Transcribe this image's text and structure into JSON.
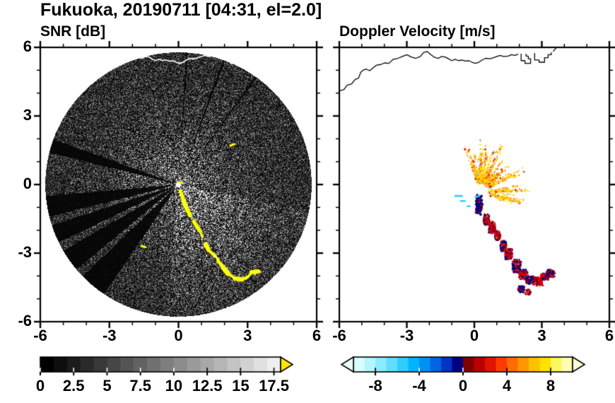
{
  "title": "Fukuoka, 20190711 [04:31, el=2.0]",
  "observation": {
    "site": "Fukuoka",
    "date": "20190711",
    "time": "04:31",
    "elevation": "2.0"
  },
  "panels": {
    "left": {
      "title": "SNR [dB]"
    },
    "right": {
      "title": "Doppler Velocity [m/s]"
    }
  },
  "axes": {
    "range": [
      -6,
      6
    ],
    "major_ticks": [
      -6,
      -3,
      0,
      3,
      6
    ],
    "major_tick_labels": [
      "-6",
      "-3",
      "0",
      "3",
      "6"
    ],
    "minor_tick_step": 1
  },
  "colorbars": {
    "snr": {
      "range": [
        0,
        18
      ],
      "tick_values": [
        0,
        2.5,
        5,
        7.5,
        10,
        12.5,
        15,
        17.5
      ],
      "tick_labels": [
        "0",
        "2.5",
        "5",
        "7.5",
        "10",
        "12.5",
        "15",
        "17.5"
      ],
      "colors": [
        "#000000",
        "#0e0e0e",
        "#1c1c1c",
        "#2a2a2a",
        "#383838",
        "#464646",
        "#545454",
        "#626262",
        "#707070",
        "#7e7e7e",
        "#8c8c8c",
        "#9a9a9a",
        "#a8a8a8",
        "#b6b6b6",
        "#c4c4c4",
        "#d2d2d2",
        "#e0e0e0",
        "#eeeeee"
      ],
      "over_arrow_color": "#ffe800"
    },
    "velocity": {
      "range": [
        -10,
        10
      ],
      "tick_values": [
        -8,
        -4,
        0,
        4,
        8
      ],
      "tick_labels": [
        "-8",
        "-4",
        "0",
        "4",
        "8"
      ],
      "colors": [
        "#d8ffff",
        "#b4f6ff",
        "#8cecff",
        "#60deff",
        "#30ccff",
        "#00b4ff",
        "#0090f4",
        "#0064e4",
        "#0034c4",
        "#000080",
        "#800000",
        "#bc0000",
        "#e01400",
        "#ff3c00",
        "#ff6c00",
        "#ff9800",
        "#ffc000",
        "#ffe200",
        "#fff660",
        "#ffffb4"
      ],
      "under_arrow_color": "#eeffff",
      "over_arrow_color": "#ffffd8"
    }
  },
  "colors": {
    "background": "#ffffff",
    "frame": "#000000",
    "coast_left": "#ffffff",
    "coast_right": "#000000",
    "echo_yellow": "#ffff00",
    "echo_pale": "#fff9a0",
    "velocity_navy": "#000080",
    "velocity_red": "#d40000",
    "velocity_orange": "#ff9500",
    "velocity_gold": "#ffcc00",
    "velocity_amber": "#ffe800",
    "velocity_cyan": "#33ccff"
  },
  "coastline": {
    "main": [
      [
        -6,
        4.1
      ],
      [
        -5.8,
        4.15
      ],
      [
        -5.65,
        4.35
      ],
      [
        -5.45,
        4.4
      ],
      [
        -5.3,
        4.6
      ],
      [
        -5.15,
        4.65
      ],
      [
        -5.05,
        4.9
      ],
      [
        -4.95,
        5.0
      ],
      [
        -4.8,
        5.05
      ],
      [
        -4.65,
        4.98
      ],
      [
        -4.5,
        5.1
      ],
      [
        -4.35,
        5.22
      ],
      [
        -4.15,
        5.25
      ],
      [
        -4.0,
        5.32
      ],
      [
        -3.8,
        5.3
      ],
      [
        -3.6,
        5.48
      ],
      [
        -3.4,
        5.52
      ],
      [
        -3.2,
        5.6
      ],
      [
        -3.0,
        5.68
      ],
      [
        -2.8,
        5.58
      ],
      [
        -2.6,
        5.52
      ],
      [
        -2.4,
        5.6
      ],
      [
        -2.25,
        5.78
      ],
      [
        -2.1,
        5.82
      ],
      [
        -1.95,
        5.7
      ],
      [
        -1.8,
        5.58
      ],
      [
        -1.6,
        5.52
      ],
      [
        -1.45,
        5.6
      ],
      [
        -1.3,
        5.58
      ],
      [
        -1.15,
        5.5
      ],
      [
        -1.0,
        5.42
      ],
      [
        -0.85,
        5.48
      ],
      [
        -0.7,
        5.42
      ],
      [
        -0.55,
        5.45
      ],
      [
        -0.4,
        5.4
      ],
      [
        -0.25,
        5.42
      ],
      [
        -0.1,
        5.35
      ],
      [
        0.05,
        5.3
      ],
      [
        0.2,
        5.35
      ],
      [
        0.35,
        5.45
      ],
      [
        0.5,
        5.52
      ],
      [
        0.7,
        5.5
      ],
      [
        0.85,
        5.55
      ],
      [
        1.0,
        5.6
      ],
      [
        1.15,
        5.65
      ],
      [
        1.3,
        5.6
      ],
      [
        1.5,
        5.62
      ],
      [
        1.65,
        5.68
      ],
      [
        1.8,
        5.65
      ],
      [
        1.95,
        5.7
      ]
    ],
    "structures": [
      [
        [
          2.08,
          5.72
        ],
        [
          2.08,
          5.42
        ],
        [
          2.25,
          5.42
        ],
        [
          2.25,
          5.3
        ],
        [
          2.5,
          5.3
        ],
        [
          2.5,
          5.5
        ],
        [
          2.4,
          5.5
        ],
        [
          2.4,
          5.62
        ],
        [
          2.3,
          5.62
        ],
        [
          2.3,
          5.72
        ]
      ],
      [
        [
          2.68,
          5.75
        ],
        [
          2.68,
          5.45
        ],
        [
          2.88,
          5.45
        ],
        [
          2.88,
          5.35
        ],
        [
          3.12,
          5.35
        ],
        [
          3.12,
          5.55
        ],
        [
          3.28,
          5.55
        ],
        [
          3.28,
          5.68
        ],
        [
          3.42,
          5.68
        ],
        [
          3.42,
          5.78
        ]
      ]
    ],
    "extra": [
      [
        3.5,
        5.82
      ],
      [
        3.64,
        5.98
      ]
    ]
  },
  "chart_data": [
    {
      "type": "heatmap",
      "title": "SNR [dB]",
      "xlabel": "",
      "ylabel": "",
      "xlim": [
        -6,
        6
      ],
      "ylim": [
        -6,
        6
      ],
      "xticks": [
        -6,
        -3,
        0,
        3,
        6
      ],
      "yticks": [
        -6,
        -3,
        0,
        3,
        6
      ],
      "colorbar": {
        "range": [
          0,
          18
        ],
        "tick_values": [
          0,
          2.5,
          5,
          7.5,
          10,
          12.5,
          15,
          17.5
        ],
        "colormap": "grayscale black to white",
        "over_color": "yellow"
      },
      "content": "Radar PPI scan: speckled low-SNR dark disk of radius ~5.8 centered on the radar at (0,0); brighter haze near the radar and toward the south-southeast; beam-blockage dark wedges toward the WSW; strong off-scale (yellow, >18 dB) precipitation echo streak arcing from near (0.1,-0.3) to (3.4,-3.8); white coastline visible across the top of the disk",
      "render": {
        "disk_radius": 5.78,
        "blocked_sectors_deg": [
          [
            160,
            166
          ],
          [
            185,
            194
          ],
          [
            198,
            206
          ],
          [
            210,
            220
          ],
          [
            224,
            236
          ]
        ],
        "thin_ray_sectors_deg": [
          [
            54,
            55
          ],
          [
            69.5,
            70.6
          ],
          [
            86,
            86.8
          ]
        ],
        "bright_fan_deg": [
          265,
          348
        ],
        "echo_track": [
          [
            0.1,
            -0.25
          ],
          [
            0.25,
            -0.75
          ],
          [
            0.35,
            -1.05
          ],
          [
            0.5,
            -1.35
          ],
          [
            0.65,
            -1.6
          ],
          [
            0.9,
            -2.0
          ],
          [
            1.05,
            -2.3
          ],
          [
            1.15,
            -2.6
          ],
          [
            1.3,
            -2.85
          ],
          [
            1.55,
            -3.1
          ],
          [
            1.75,
            -3.35
          ],
          [
            1.95,
            -3.65
          ],
          [
            2.15,
            -3.9
          ],
          [
            2.45,
            -4.1
          ],
          [
            2.75,
            -4.15
          ],
          [
            3.0,
            -4.05
          ],
          [
            3.2,
            -3.85
          ],
          [
            3.45,
            -3.8
          ]
        ],
        "echo_marks": [
          [
            [
              -1.6,
              -2.7
            ],
            [
              -1.42,
              -2.74
            ]
          ],
          [
            [
              2.25,
              1.7
            ],
            [
              2.42,
              1.76
            ]
          ],
          [
            [
              0.02,
              0.06
            ],
            [
              0.14,
              0.1
            ]
          ]
        ]
      }
    },
    {
      "type": "scatter",
      "title": "Doppler Velocity [m/s]",
      "xlabel": "",
      "ylabel": "",
      "xlim": [
        -6,
        6
      ],
      "ylim": [
        -6,
        6
      ],
      "xticks": [
        -6,
        -3,
        0,
        3,
        6
      ],
      "yticks": [
        -6,
        -3,
        0,
        3,
        6
      ],
      "colorbar": {
        "range": [
          -10,
          10
        ],
        "tick_values": [
          -8,
          -4,
          0,
          4,
          8
        ],
        "colormap": "diverging cyan-blue-navy / maroon-red-orange-yellow"
      },
      "content": "Doppler velocity of detected echoes only, on white background: fan of warm-colored (+4 to +9 m/s) speckles northeast of the radar centered near (0.8,0.8); alternating red/navy (folded, about +/-8-10 m/s) echo segments along a track from (0.2,-0.8) down to (3.4,-3.8); a few cyan (about -5 m/s) dashes near (-0.6,-0.6); black coastline across the top",
      "render": {
        "fan": {
          "origin": [
            0.25,
            -0.3
          ],
          "angle_range_deg": [
            -20,
            110
          ],
          "radius_range": [
            0.35,
            2.4
          ],
          "n_streaks": 110
        },
        "blobs": [
          [
            0.17,
            -0.85,
            0.1,
            0.3,
            0.85
          ],
          [
            0.5,
            -1.5,
            0.09,
            0.16,
            0.5
          ],
          [
            0.75,
            -1.85,
            0.1,
            0.18,
            0.3
          ],
          [
            1.0,
            -2.2,
            0.08,
            0.14,
            0.4
          ],
          [
            1.25,
            -2.65,
            0.09,
            0.16,
            0.6
          ],
          [
            1.5,
            -3.0,
            0.11,
            0.16,
            0.25
          ],
          [
            1.85,
            -3.55,
            0.13,
            0.2,
            0.55
          ],
          [
            2.15,
            -3.9,
            0.13,
            0.15,
            0.3
          ],
          [
            2.45,
            -4.15,
            0.13,
            0.12,
            0.65
          ],
          [
            2.8,
            -4.2,
            0.14,
            0.12,
            0.3
          ],
          [
            3.1,
            -4.0,
            0.12,
            0.1,
            0.35
          ],
          [
            3.35,
            -3.85,
            0.13,
            0.11,
            0.55
          ],
          [
            2.05,
            -4.55,
            0.09,
            0.1,
            0.7
          ],
          [
            2.35,
            -4.68,
            0.08,
            0.08,
            0.4
          ]
        ],
        "cyan_dashes": [
          [
            -0.85,
            -0.5,
            -0.55,
            -0.5
          ],
          [
            -0.6,
            -0.72,
            -0.42,
            -0.72
          ],
          [
            -0.3,
            -0.95,
            -0.2,
            -0.95
          ],
          [
            0.05,
            -0.55,
            0.22,
            -0.5
          ]
        ]
      }
    }
  ]
}
